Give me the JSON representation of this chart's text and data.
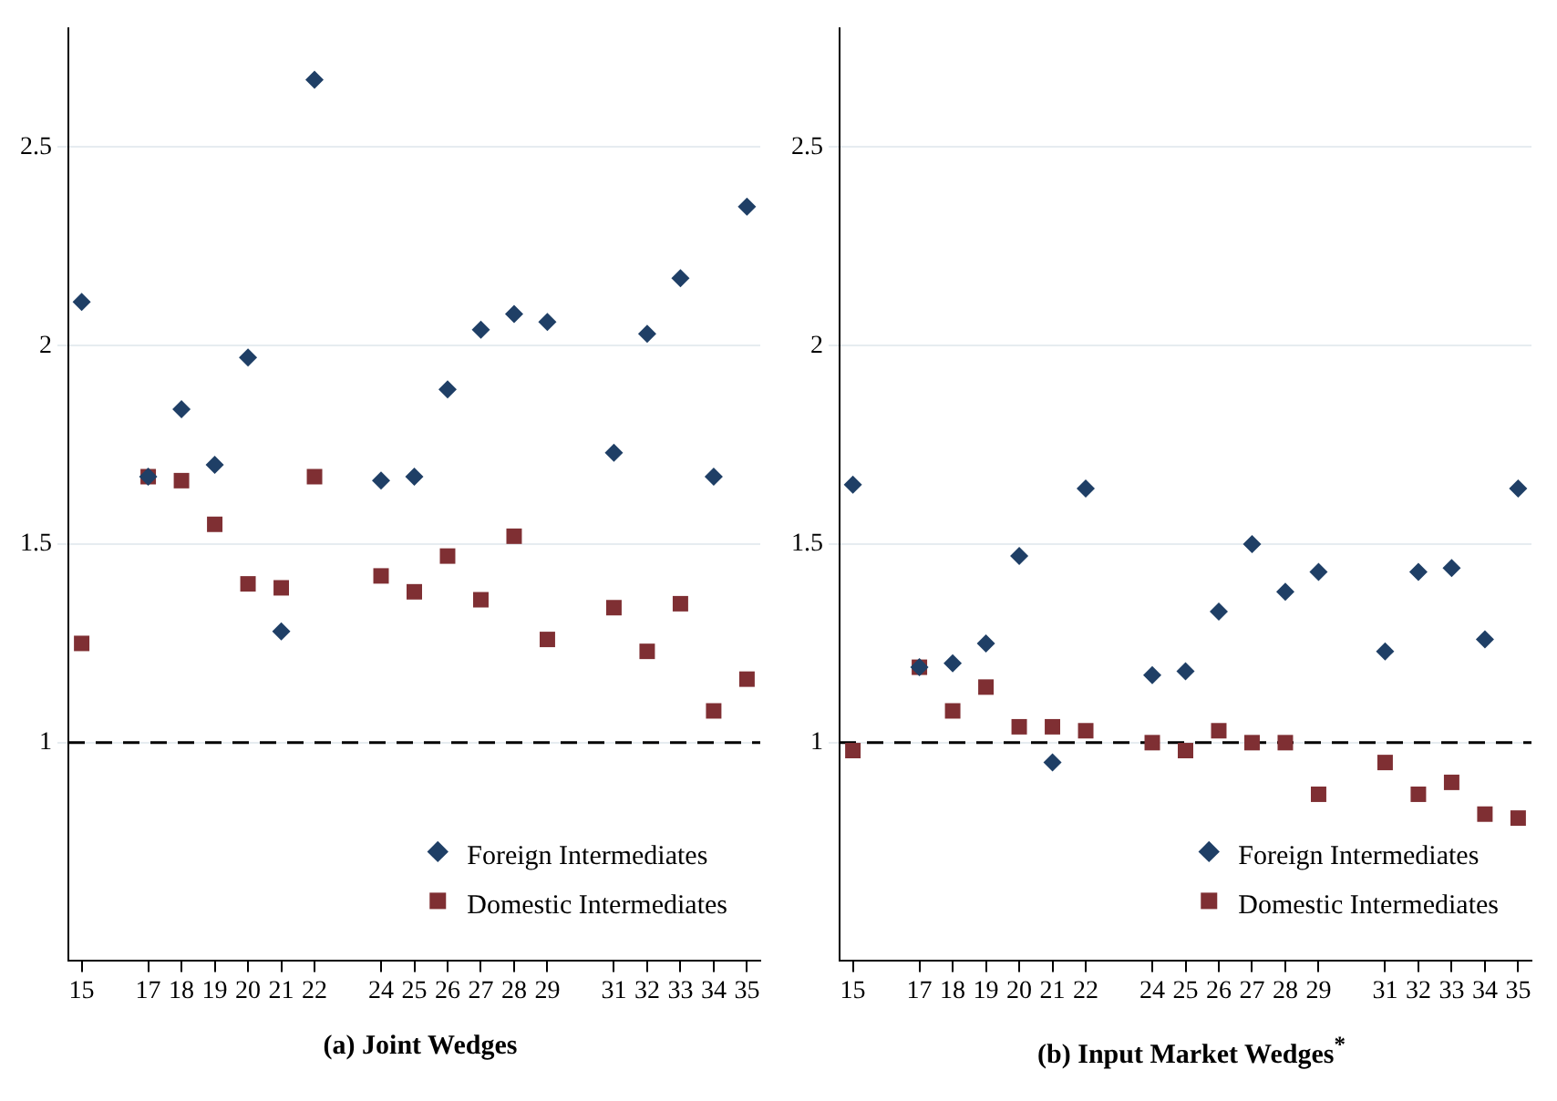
{
  "chart_data": [
    {
      "type": "scatter",
      "title": "(a) Joint Wedges",
      "x": [
        15,
        17,
        18,
        19,
        20,
        21,
        22,
        24,
        25,
        26,
        27,
        28,
        29,
        31,
        32,
        33,
        34,
        35
      ],
      "xlim": [
        14.6,
        35.4
      ],
      "xticks": [
        15,
        17,
        18,
        19,
        20,
        21,
        22,
        24,
        25,
        26,
        27,
        28,
        29,
        31,
        32,
        33,
        34,
        35
      ],
      "ylim": [
        0.45,
        2.8
      ],
      "yticks": [
        1,
        1.5,
        2,
        2.5
      ],
      "grid": "y",
      "legend": "bottom right",
      "ref_lines": [
        {
          "axis": "y",
          "value": 1,
          "color": "#000000",
          "line_style": "dashed"
        }
      ],
      "series": [
        {
          "name": "Foreign Intermediates",
          "color": "#1f3f66",
          "marker": "diamond",
          "values": [
            2.11,
            1.67,
            1.84,
            1.7,
            1.97,
            1.28,
            2.67,
            1.66,
            1.67,
            1.89,
            2.04,
            2.08,
            2.06,
            1.73,
            2.03,
            2.17,
            1.67,
            2.35
          ]
        },
        {
          "name": "Domestic Intermediates",
          "color": "#7f2f33",
          "marker": "square",
          "values": [
            1.25,
            1.67,
            1.66,
            1.55,
            1.4,
            1.39,
            1.67,
            1.42,
            1.38,
            1.47,
            1.36,
            1.52,
            1.26,
            1.34,
            1.23,
            1.35,
            1.08,
            1.16
          ]
        }
      ]
    },
    {
      "type": "scatter",
      "title": "(b) Input Market Wedges$^{*}$",
      "x": [
        15,
        17,
        18,
        19,
        20,
        21,
        22,
        24,
        25,
        26,
        27,
        28,
        29,
        31,
        32,
        33,
        34,
        35
      ],
      "xlim": [
        14.6,
        35.4
      ],
      "xticks": [
        15,
        17,
        18,
        19,
        20,
        21,
        22,
        24,
        25,
        26,
        27,
        28,
        29,
        31,
        32,
        33,
        34,
        35
      ],
      "ylim": [
        0.45,
        2.8
      ],
      "yticks": [
        1,
        1.5,
        2,
        2.5
      ],
      "grid": "y",
      "legend": "bottom right",
      "ref_lines": [
        {
          "axis": "y",
          "value": 1,
          "color": "#000000",
          "line_style": "dashed"
        }
      ],
      "series": [
        {
          "name": "Foreign Intermediates",
          "color": "#1f3f66",
          "marker": "diamond",
          "values": [
            1.65,
            1.19,
            1.2,
            1.25,
            1.47,
            0.95,
            1.64,
            1.17,
            1.18,
            1.33,
            1.5,
            1.38,
            1.43,
            1.23,
            1.43,
            1.44,
            1.26,
            1.64
          ]
        },
        {
          "name": "Domestic Intermediates",
          "color": "#7f2f33",
          "marker": "square",
          "values": [
            0.98,
            1.19,
            1.08,
            1.14,
            1.04,
            1.04,
            1.03,
            1.0,
            0.98,
            1.03,
            1.0,
            1.0,
            0.87,
            0.95,
            0.87,
            0.9,
            0.82,
            0.81
          ]
        }
      ]
    }
  ]
}
